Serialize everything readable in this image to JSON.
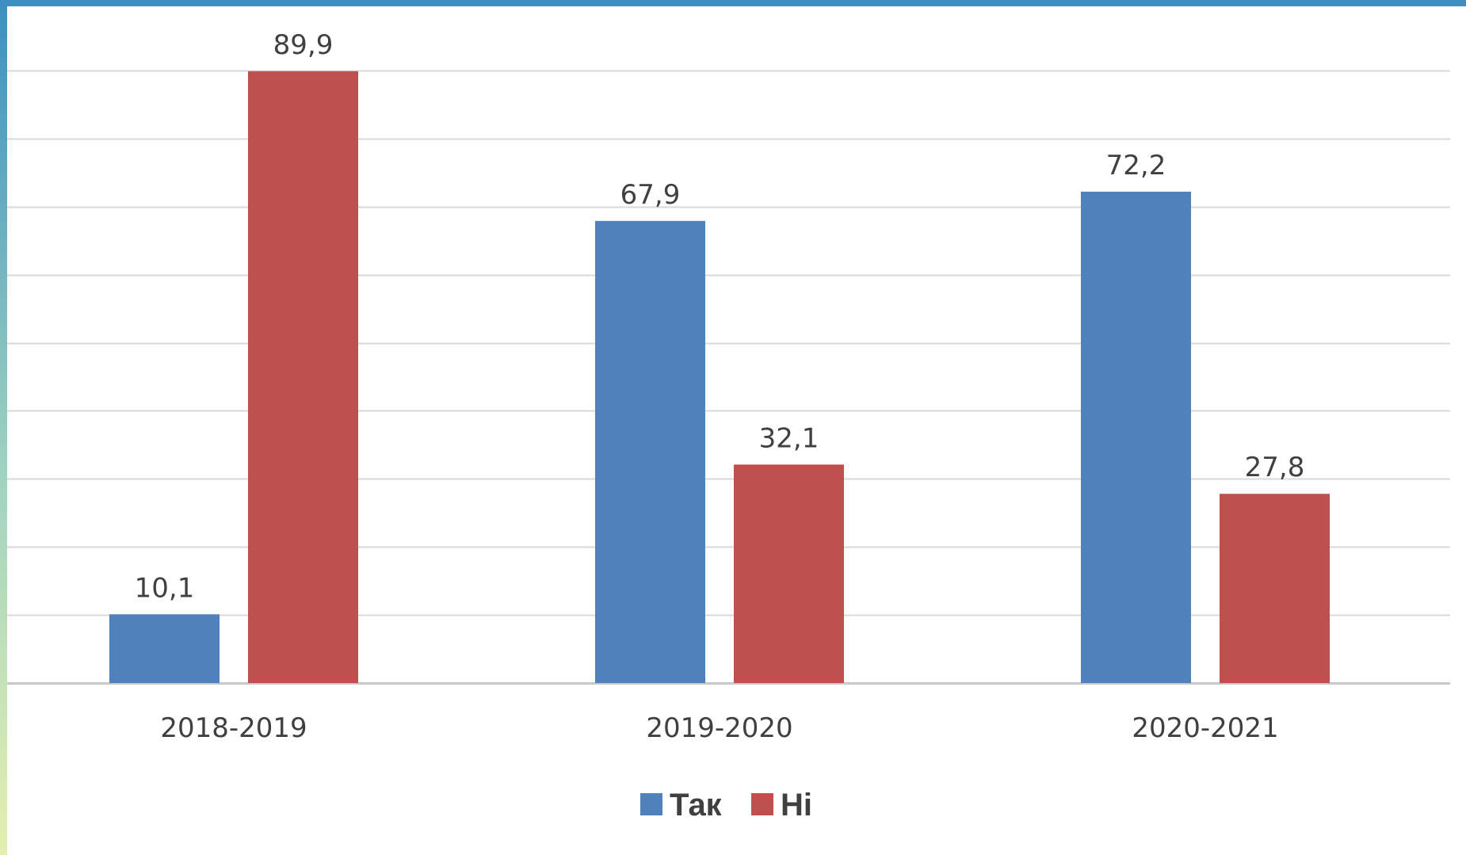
{
  "chart_data": {
    "type": "bar",
    "categories": [
      "2018-2019",
      "2019-2020",
      "2020-2021"
    ],
    "series": [
      {
        "name": "Так",
        "color": "#4f81bd",
        "values": [
          10.1,
          67.9,
          72.2
        ],
        "labels": [
          "10,1",
          "67,9",
          "72,2"
        ]
      },
      {
        "name": "Ні",
        "color": "#c0504d",
        "values": [
          89.9,
          32.1,
          27.8
        ],
        "labels": [
          "89,9",
          "32,1",
          "27,8"
        ]
      }
    ],
    "ylim": [
      0,
      90
    ],
    "y_gridline_step": 10,
    "grid": true,
    "legend": "bottom-center",
    "frame_gradient": [
      "#3b8fc0",
      "#9fd2c0",
      "#e4efb0"
    ]
  }
}
